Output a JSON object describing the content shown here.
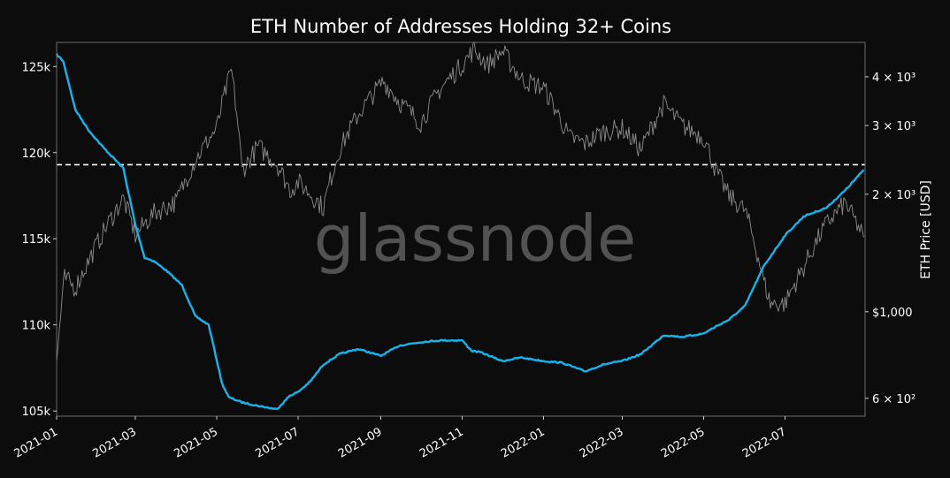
{
  "chart_data": {
    "type": "line",
    "title": "ETH Number of Addresses Holding 32+ Coins",
    "y2label": "ETH Price [USD]",
    "watermark": "glassnode",
    "x_tick_labels": [
      "2021-01",
      "2021-03",
      "2021-05",
      "2021-07",
      "2021-09",
      "2021-11",
      "2022-01",
      "2022-03",
      "2022-05",
      "2022-07"
    ],
    "x_ticks": [
      "2021-01-01",
      "2021-03-01",
      "2021-05-01",
      "2021-07-01",
      "2021-09-01",
      "2021-11-01",
      "2022-01-01",
      "2022-03-01",
      "2022-05-01",
      "2022-07-01"
    ],
    "xlim": [
      "2021-01-01",
      "2022-08-30"
    ],
    "y_left": {
      "ticks": [
        105000,
        110000,
        115000,
        120000,
        125000
      ],
      "tick_labels": [
        "105k",
        "110k",
        "115k",
        "120k",
        "125k"
      ],
      "ylim": [
        104700,
        126400
      ]
    },
    "y_right": {
      "scale": "log",
      "ticks": [
        600,
        1000,
        2000,
        3000,
        4000
      ],
      "tick_labels": [
        "6 × 10²",
        "$1,000",
        "2 × 10³",
        "3 × 10³",
        "4 × 10³"
      ],
      "ylim": [
        540,
        4900
      ]
    },
    "reference_line": {
      "value": 119300,
      "axis": "left",
      "style": "dashed",
      "color": "#ffffff"
    },
    "colors": {
      "background": "#0c0c0c",
      "frame": "#6b6b6b",
      "text": "#ffffff",
      "addresses": "#1ab2ea",
      "price": "#8c8c8c",
      "watermark": "#5a5a5a"
    },
    "series": [
      {
        "axis": "left",
        "color": "#1ab2ea",
        "x": [
          "2021-01-01",
          "2021-01-06",
          "2021-01-15",
          "2021-01-25",
          "2021-02-05",
          "2021-02-20",
          "2021-03-01",
          "2021-03-08",
          "2021-03-15",
          "2021-03-25",
          "2021-04-05",
          "2021-04-15",
          "2021-04-25",
          "2021-05-05",
          "2021-05-10",
          "2021-05-20",
          "2021-06-01",
          "2021-06-15",
          "2021-06-25",
          "2021-07-01",
          "2021-07-10",
          "2021-07-20",
          "2021-08-01",
          "2021-08-15",
          "2021-09-01",
          "2021-09-15",
          "2021-10-01",
          "2021-10-15",
          "2021-11-01",
          "2021-11-08",
          "2021-11-15",
          "2021-12-01",
          "2021-12-15",
          "2022-01-01",
          "2022-01-15",
          "2022-02-01",
          "2022-02-15",
          "2022-03-01",
          "2022-03-15",
          "2022-04-01",
          "2022-04-15",
          "2022-05-01",
          "2022-05-10",
          "2022-05-20",
          "2022-06-01",
          "2022-06-15",
          "2022-07-01",
          "2022-07-15",
          "2022-08-01",
          "2022-08-15",
          "2022-08-29"
        ],
        "y": [
          125700,
          125300,
          122500,
          121300,
          120300,
          119100,
          115800,
          113900,
          113700,
          113100,
          112300,
          110500,
          110000,
          106600,
          105800,
          105500,
          105300,
          105100,
          105900,
          106100,
          106700,
          107700,
          108300,
          108600,
          108200,
          108800,
          109000,
          109100,
          109100,
          108500,
          108400,
          107900,
          108100,
          107900,
          107800,
          107300,
          107700,
          107900,
          108300,
          109400,
          109300,
          109500,
          109900,
          110300,
          111100,
          113400,
          115200,
          116300,
          116800,
          117800,
          119000
        ]
      },
      {
        "axis": "right",
        "color": "#8c8c8c",
        "x": [
          "2021-01-01",
          "2021-01-07",
          "2021-01-15",
          "2021-01-25",
          "2021-02-05",
          "2021-02-20",
          "2021-03-01",
          "2021-03-15",
          "2021-04-01",
          "2021-04-15",
          "2021-05-01",
          "2021-05-12",
          "2021-05-20",
          "2021-06-01",
          "2021-06-15",
          "2021-06-25",
          "2021-07-01",
          "2021-07-20",
          "2021-08-01",
          "2021-08-15",
          "2021-09-03",
          "2021-09-15",
          "2021-10-01",
          "2021-10-15",
          "2021-11-01",
          "2021-11-10",
          "2021-11-20",
          "2021-12-01",
          "2021-12-15",
          "2022-01-01",
          "2022-01-20",
          "2022-02-01",
          "2022-02-15",
          "2022-03-01",
          "2022-03-15",
          "2022-04-01",
          "2022-04-15",
          "2022-05-01",
          "2022-05-10",
          "2022-05-20",
          "2022-06-01",
          "2022-06-15",
          "2022-06-20",
          "2022-07-01",
          "2022-07-15",
          "2022-08-01",
          "2022-08-15",
          "2022-08-29"
        ],
        "y": [
          730,
          1220,
          1150,
          1350,
          1600,
          1950,
          1570,
          1790,
          1920,
          2450,
          2950,
          4150,
          2300,
          2650,
          2400,
          2050,
          2150,
          1850,
          2600,
          3200,
          3900,
          3450,
          3050,
          3700,
          4300,
          4700,
          4300,
          4650,
          3950,
          3750,
          2800,
          2700,
          2900,
          2950,
          2600,
          3400,
          3000,
          2800,
          2300,
          1980,
          1820,
          1200,
          1050,
          1050,
          1300,
          1680,
          1900,
          1550
        ]
      }
    ]
  }
}
